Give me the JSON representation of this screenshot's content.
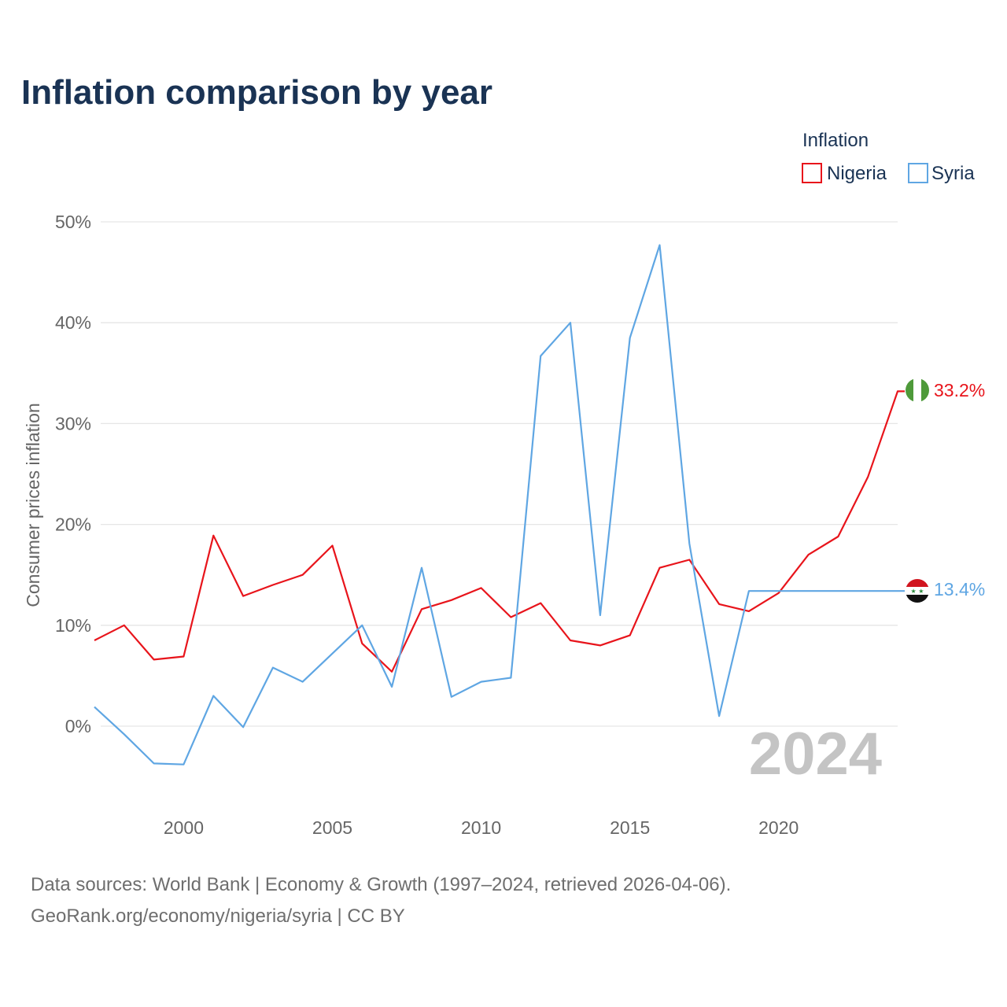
{
  "title": "Inflation comparison by year",
  "legend": {
    "title": "Inflation",
    "items": [
      {
        "name": "Nigeria",
        "color": "#e8141b"
      },
      {
        "name": "Syria",
        "color": "#5fa6e3"
      }
    ]
  },
  "chart_data": {
    "type": "line",
    "title": "Inflation comparison by year",
    "xlabel": "",
    "ylabel": "Consumer prices inflation",
    "xlim": [
      1997,
      2024
    ],
    "ylim": [
      -7,
      50
    ],
    "x": [
      1997,
      1998,
      1999,
      2000,
      2001,
      2002,
      2003,
      2004,
      2005,
      2006,
      2007,
      2008,
      2009,
      2010,
      2011,
      2012,
      2013,
      2014,
      2015,
      2016,
      2017,
      2018,
      2019,
      2020,
      2021,
      2022,
      2023,
      2024
    ],
    "x_ticks": [
      2000,
      2005,
      2010,
      2015,
      2020
    ],
    "y_ticks": [
      0,
      10,
      20,
      30,
      40,
      50
    ],
    "y_tick_labels": [
      "0%",
      "10%",
      "20%",
      "30%",
      "40%",
      "50%"
    ],
    "grid": true,
    "legend_position": "top-right",
    "series": [
      {
        "name": "Nigeria",
        "color": "#e8141b",
        "values": [
          8.5,
          10.0,
          6.6,
          6.9,
          18.9,
          12.9,
          14.0,
          15.0,
          17.9,
          8.2,
          5.4,
          11.6,
          12.5,
          13.7,
          10.8,
          12.2,
          8.5,
          8.0,
          9.0,
          15.7,
          16.5,
          12.1,
          11.4,
          13.2,
          17.0,
          18.8,
          24.7,
          33.2
        ],
        "end_label": "33.2%"
      },
      {
        "name": "Syria",
        "color": "#5fa6e3",
        "values": [
          1.9,
          -0.8,
          -3.7,
          -3.8,
          3.0,
          -0.1,
          5.8,
          4.4,
          7.2,
          10.0,
          3.9,
          15.7,
          2.9,
          4.4,
          4.8,
          36.7,
          40.0,
          11.0,
          38.5,
          47.7,
          18.1,
          1.0,
          13.4,
          13.4,
          13.4,
          13.4,
          13.4,
          13.4
        ],
        "end_label": "13.4%"
      }
    ]
  },
  "year_label": "2024",
  "source": {
    "line1": "Data sources: World Bank | Economy & Growth (1997–2024, retrieved 2026-04-06).",
    "line2": "GeoRank.org/economy/nigeria/syria | CC BY"
  }
}
